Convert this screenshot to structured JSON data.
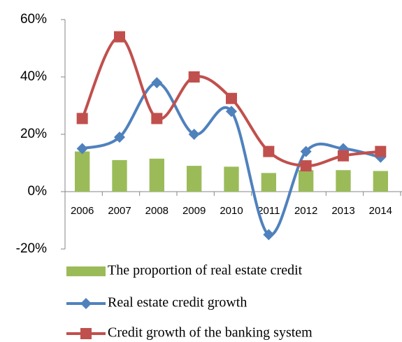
{
  "chart_data": {
    "type": "combo",
    "categories": [
      "2006",
      "2007",
      "2008",
      "2009",
      "2010",
      "2011",
      "2012",
      "2013",
      "2014"
    ],
    "series": [
      {
        "name": "The proportion of real estate credit",
        "type": "bar",
        "color": "#9bbb59",
        "values": [
          14,
          11,
          11.5,
          9,
          8.7,
          6.5,
          7.5,
          7.5,
          7.2
        ]
      },
      {
        "name": "Real estate credit growth",
        "type": "line",
        "marker": "diamond",
        "color": "#4f81bd",
        "values": [
          15,
          19,
          38,
          20,
          28,
          -15,
          14,
          15,
          12
        ]
      },
      {
        "name": "Credit growth of the banking system",
        "type": "line",
        "marker": "square",
        "color": "#c0504d",
        "values": [
          25.5,
          54,
          25.5,
          40,
          32.5,
          14,
          9,
          12.5,
          14
        ]
      }
    ],
    "ylim": [
      -20,
      60
    ],
    "yticks": [
      {
        "value": -20,
        "label": "-20%"
      },
      {
        "value": 0,
        "label": "0%"
      },
      {
        "value": 20,
        "label": "20%"
      },
      {
        "value": 40,
        "label": "40%"
      },
      {
        "value": 60,
        "label": "60%"
      }
    ],
    "smooth": true
  }
}
